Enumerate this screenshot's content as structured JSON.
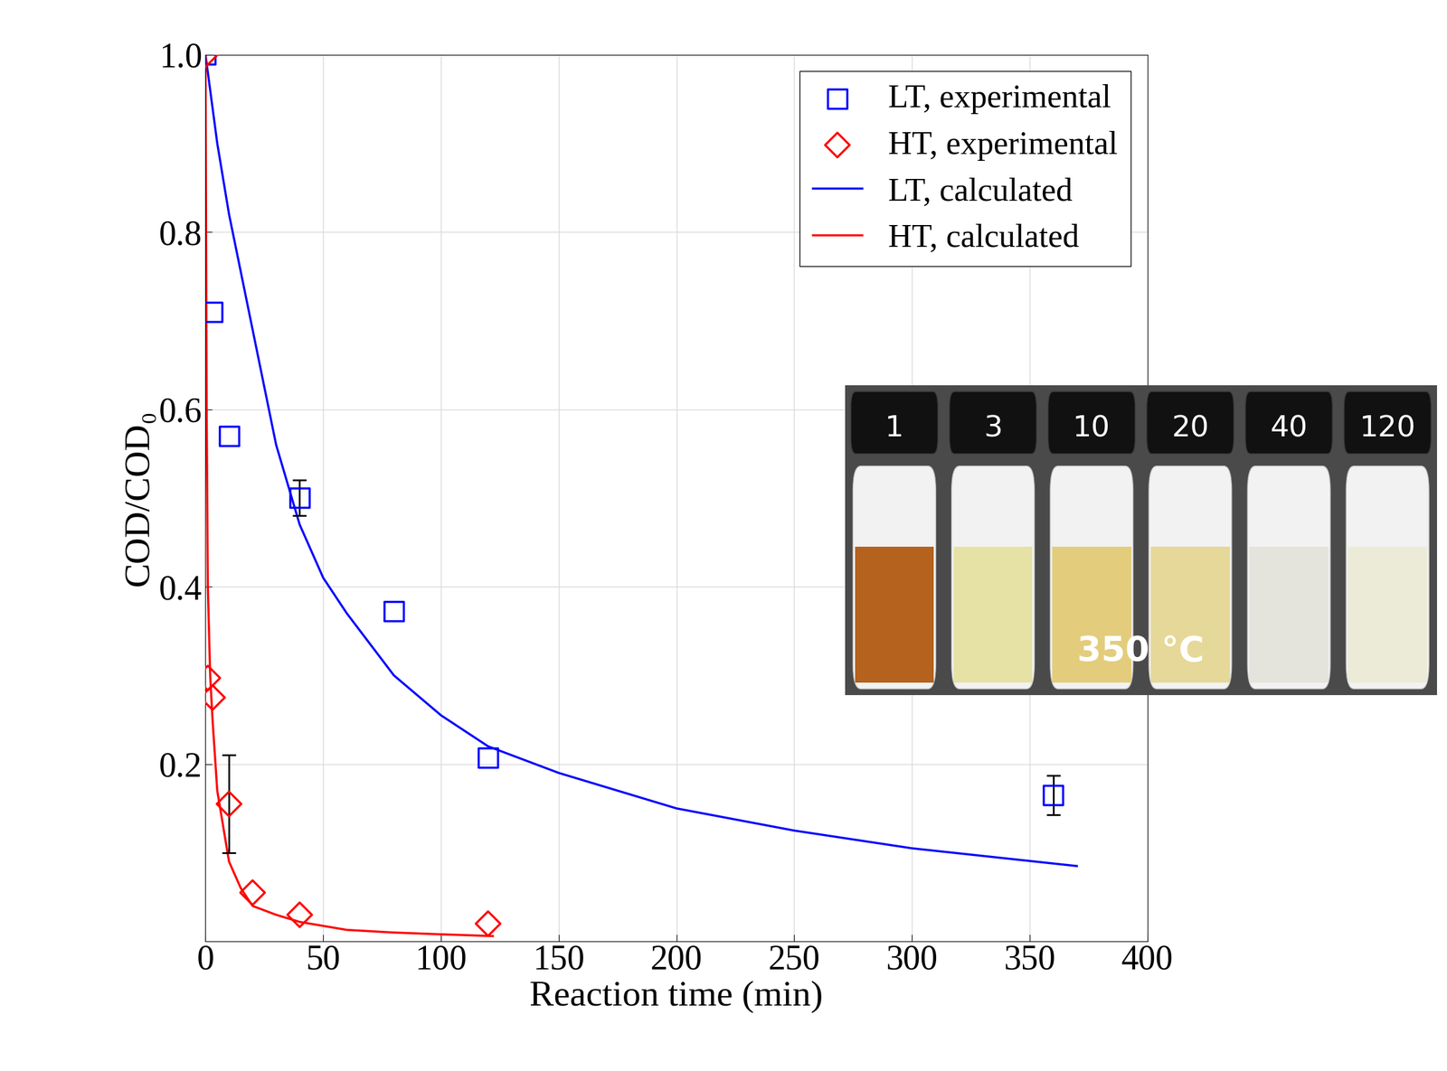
{
  "chart_data": {
    "type": "scatter",
    "x_label": "Reaction time (min)",
    "y_label": "COD/COD₀",
    "xlim": [
      0,
      400
    ],
    "xticks": [
      0,
      50,
      100,
      150,
      200,
      250,
      300,
      350,
      400
    ],
    "ylim": [
      0,
      1
    ],
    "yticks": [
      {
        "value": 0.2,
        "label": "0.2"
      },
      {
        "value": 0.4,
        "label": "0.4"
      },
      {
        "value": 0.6,
        "label": "0.6"
      },
      {
        "value": 0.8,
        "label": "0.8"
      },
      {
        "value": 1,
        "label": "1.0"
      }
    ],
    "grid": true,
    "legend": "upper right",
    "series": [
      {
        "name": "LT, experimental",
        "type": "scatter",
        "color": "#0000ff",
        "marker": "square",
        "x": [
          0,
          3,
          10,
          40,
          80,
          120,
          360
        ],
        "values": [
          1.0,
          0.71,
          0.57,
          0.5,
          0.372,
          0.207,
          0.165
        ],
        "errors": [
          null,
          null,
          null,
          0.02,
          null,
          null,
          0.022
        ]
      },
      {
        "name": "HT, experimental",
        "type": "scatter",
        "color": "#ff0000",
        "marker": "diamond",
        "x": [
          0,
          1,
          3,
          10,
          20,
          40,
          120
        ],
        "values": [
          1.0,
          0.297,
          0.275,
          0.155,
          0.055,
          0.03,
          0.02
        ],
        "errors": [
          null,
          null,
          null,
          0.055,
          null,
          null,
          null
        ]
      },
      {
        "name": "LT, calculated",
        "type": "line",
        "color": "#0000ff",
        "line_style": "solid",
        "x": [
          0,
          5,
          10,
          20,
          30,
          40,
          50,
          60,
          80,
          100,
          120,
          150,
          200,
          250,
          300,
          370
        ],
        "values": [
          1.0,
          0.9,
          0.82,
          0.69,
          0.56,
          0.47,
          0.41,
          0.37,
          0.3,
          0.255,
          0.22,
          0.19,
          0.15,
          0.125,
          0.105,
          0.085
        ]
      },
      {
        "name": "HT, calculated",
        "type": "line",
        "color": "#ff0000",
        "line_style": "solid",
        "x": [
          0,
          0.5,
          1,
          2,
          3,
          5,
          10,
          15,
          20,
          30,
          40,
          60,
          80,
          100,
          122
        ],
        "values": [
          1.0,
          0.6,
          0.4,
          0.3,
          0.25,
          0.17,
          0.09,
          0.06,
          0.04,
          0.03,
          0.022,
          0.013,
          0.01,
          0.008,
          0.006
        ]
      }
    ]
  },
  "inset": {
    "labels": [
      "1",
      "3",
      "10",
      "20",
      "40",
      "120"
    ],
    "colors": [
      "#b4621e",
      "#e6e2a6",
      "#e3cd7c",
      "#e6d898",
      "#e4e4dc",
      "#ecebd8"
    ],
    "text": "350 °C"
  }
}
